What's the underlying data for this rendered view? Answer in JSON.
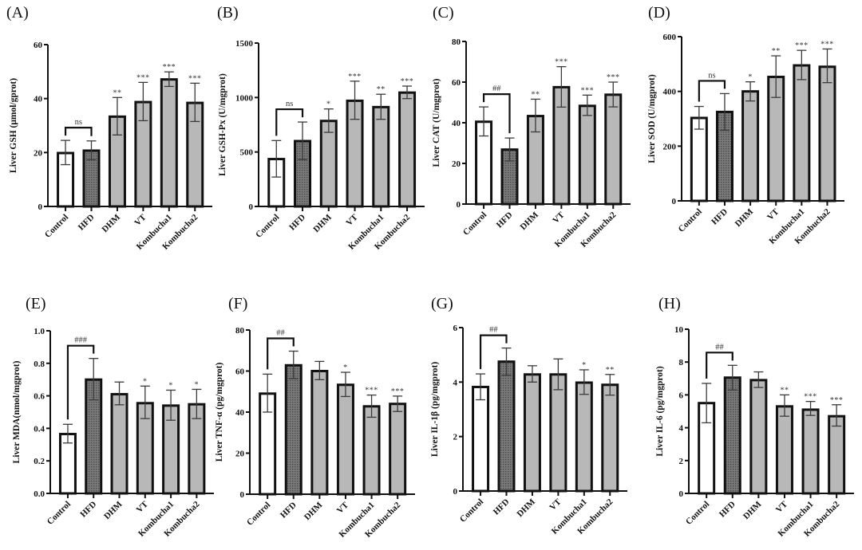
{
  "figure": {
    "categories": [
      "Control",
      "HFD",
      "DHM",
      "VT",
      "Kombucha1",
      "Kombucha2"
    ],
    "colors": {
      "control_fill": "#ffffff",
      "hfd_fill": "#7a7a7a",
      "treatment_fill": "#b8b8b8",
      "stroke": "#111111",
      "annotation": "#333333"
    }
  },
  "chart_data": [
    {
      "type": "bar",
      "panel_label": "(A)",
      "ylabel": "Liver GSH (μmol/gprot)",
      "categories": [
        "Control",
        "HFD",
        "DHM",
        "VT",
        "Kombucha1",
        "Kombucha2"
      ],
      "values": [
        19.8,
        20.7,
        33.3,
        38.7,
        47.1,
        38.4
      ],
      "err_upper": [
        24.5,
        24.3,
        40.4,
        46.0,
        49.9,
        45.7
      ],
      "err_lower": [
        15.5,
        17.3,
        26.5,
        31.8,
        44.5,
        31.5
      ],
      "significance": [
        "",
        "",
        "**",
        "***",
        "***",
        "***"
      ],
      "bracket": {
        "from": "Control",
        "to": "HFD",
        "label": "ns"
      },
      "ylim": [
        0,
        60
      ],
      "yticks": [
        0,
        20,
        40,
        60
      ],
      "ytick_labels": [
        "0",
        "20",
        "40",
        "60"
      ]
    },
    {
      "type": "bar",
      "panel_label": "(B)",
      "ylabel": "Liver  GSH-Px (U/mgprot)",
      "categories": [
        "Control",
        "HFD",
        "DHM",
        "VT",
        "Kombucha1",
        "Kombucha2"
      ],
      "values": [
        435,
        600,
        785,
        970,
        912,
        1045
      ],
      "err_upper": [
        605,
        775,
        895,
        1150,
        1030,
        1105
      ],
      "err_lower": [
        270,
        430,
        680,
        800,
        800,
        990
      ],
      "significance": [
        "",
        "",
        "*",
        "***",
        "**",
        "***"
      ],
      "bracket": {
        "from": "Control",
        "to": "HFD",
        "label": "ns"
      },
      "ylim": [
        0,
        1500
      ],
      "yticks": [
        0,
        500,
        1000,
        1500
      ],
      "ytick_labels": [
        "0",
        "500",
        "1000",
        "1500"
      ]
    },
    {
      "type": "bar",
      "panel_label": "(C)",
      "ylabel": "Liver CAT (U/mgprot)",
      "categories": [
        "Control",
        "HFD",
        "DHM",
        "VT",
        "Kombucha1",
        "Kombucha2"
      ],
      "values": [
        40.5,
        26.8,
        43.3,
        57.5,
        48.3,
        53.8
      ],
      "err_upper": [
        47.8,
        32.5,
        51.6,
        67.6,
        53.6,
        60.0
      ],
      "err_lower": [
        33.5,
        21.2,
        35.5,
        47.7,
        43.6,
        47.8
      ],
      "significance": [
        "",
        "",
        "**",
        "***",
        "***",
        "***"
      ],
      "bracket": {
        "from": "Control",
        "to": "HFD",
        "label": "##"
      },
      "ylim": [
        0,
        80
      ],
      "yticks": [
        0,
        20,
        40,
        60,
        80
      ],
      "ytick_labels": [
        "0",
        "20",
        "40",
        "60",
        "80"
      ]
    },
    {
      "type": "bar",
      "panel_label": "(D)",
      "ylabel": "Liver SOD (U/mgprot)",
      "categories": [
        "Control",
        "HFD",
        "DHM",
        "VT",
        "Kombucha1",
        "Kombucha2"
      ],
      "values": [
        303,
        325,
        400,
        453,
        495,
        490
      ],
      "err_upper": [
        345,
        392,
        435,
        530,
        550,
        555
      ],
      "err_lower": [
        262,
        258,
        365,
        378,
        443,
        432
      ],
      "significance": [
        "",
        "",
        "*",
        "**",
        "***",
        "***"
      ],
      "bracket": {
        "from": "Control",
        "to": "HFD",
        "label": "ns"
      },
      "ylim": [
        0,
        600
      ],
      "yticks": [
        0,
        200,
        400,
        600
      ],
      "ytick_labels": [
        "0",
        "200",
        "400",
        "600"
      ]
    },
    {
      "type": "bar",
      "panel_label": "(E)",
      "ylabel": "Liver MDA(nmol/mgprot)",
      "categories": [
        "Control",
        "HFD",
        "DHM",
        "VT",
        "Kombucha1",
        "Kombucha2"
      ],
      "values": [
        0.365,
        0.7,
        0.61,
        0.555,
        0.54,
        0.548
      ],
      "err_upper": [
        0.425,
        0.83,
        0.685,
        0.66,
        0.635,
        0.64
      ],
      "err_lower": [
        0.31,
        0.575,
        0.545,
        0.46,
        0.45,
        0.46
      ],
      "significance": [
        "",
        "",
        "",
        "*",
        "*",
        "*"
      ],
      "bracket": {
        "from": "Control",
        "to": "HFD",
        "label": "###"
      },
      "ylim": [
        0,
        1.0
      ],
      "yticks": [
        0,
        0.2,
        0.4,
        0.6,
        0.8,
        1.0
      ],
      "ytick_labels": [
        "0.0",
        "0.2",
        "0.4",
        "0.6",
        "0.8",
        "1.0"
      ]
    },
    {
      "type": "bar",
      "panel_label": "(F)",
      "ylabel": "Liver TNF-α (pg/mgprot)",
      "categories": [
        "Control",
        "HFD",
        "DHM",
        "VT",
        "Kombucha1",
        "Kombucha2"
      ],
      "values": [
        49.0,
        62.8,
        60.0,
        53.3,
        42.8,
        44.0
      ],
      "err_upper": [
        58.5,
        69.7,
        64.7,
        59.4,
        48.3,
        47.8
      ],
      "err_lower": [
        40.0,
        56.3,
        55.8,
        47.6,
        37.5,
        40.3
      ],
      "significance": [
        "",
        "",
        "",
        "*",
        "***",
        "***"
      ],
      "bracket": {
        "from": "Control",
        "to": "HFD",
        "label": "##"
      },
      "ylim": [
        0,
        80
      ],
      "yticks": [
        0,
        20,
        40,
        60,
        80
      ],
      "ytick_labels": [
        "0",
        "20",
        "40",
        "60",
        "80"
      ]
    },
    {
      "type": "bar",
      "panel_label": "(G)",
      "ylabel": "Liver IL-1β (pg/mgprot)",
      "categories": [
        "Control",
        "HFD",
        "DHM",
        "VT",
        "Kombucha1",
        "Kombucha2"
      ],
      "values": [
        3.82,
        4.75,
        4.28,
        4.28,
        3.98,
        3.9
      ],
      "err_upper": [
        4.3,
        5.25,
        4.6,
        4.85,
        4.45,
        4.28
      ],
      "err_lower": [
        3.35,
        4.25,
        4.0,
        3.72,
        3.55,
        3.52
      ],
      "significance": [
        "",
        "",
        "",
        "",
        "*",
        "**"
      ],
      "bracket": {
        "from": "Control",
        "to": "HFD",
        "label": "##"
      },
      "ylim": [
        0,
        6
      ],
      "yticks": [
        0,
        2,
        4,
        6
      ],
      "ytick_labels": [
        "0",
        "2",
        "4",
        "6"
      ]
    },
    {
      "type": "bar",
      "panel_label": "(H)",
      "ylabel": "Liver IL-6 (pg/mgprot)",
      "categories": [
        "Control",
        "HFD",
        "DHM",
        "VT",
        "Kombucha1",
        "Kombucha2"
      ],
      "values": [
        5.5,
        7.05,
        6.9,
        5.3,
        5.1,
        4.7
      ],
      "err_upper": [
        6.7,
        7.8,
        7.4,
        6.0,
        5.6,
        5.4
      ],
      "err_lower": [
        4.3,
        6.3,
        6.45,
        4.7,
        4.75,
        4.1
      ],
      "significance": [
        "",
        "",
        "",
        "**",
        "***",
        "***"
      ],
      "bracket": {
        "from": "Control",
        "to": "HFD",
        "label": "##"
      },
      "ylim": [
        0,
        10
      ],
      "yticks": [
        0,
        2,
        4,
        6,
        8,
        10
      ],
      "ytick_labels": [
        "0",
        "2",
        "4",
        "6",
        "8",
        "10"
      ]
    }
  ]
}
